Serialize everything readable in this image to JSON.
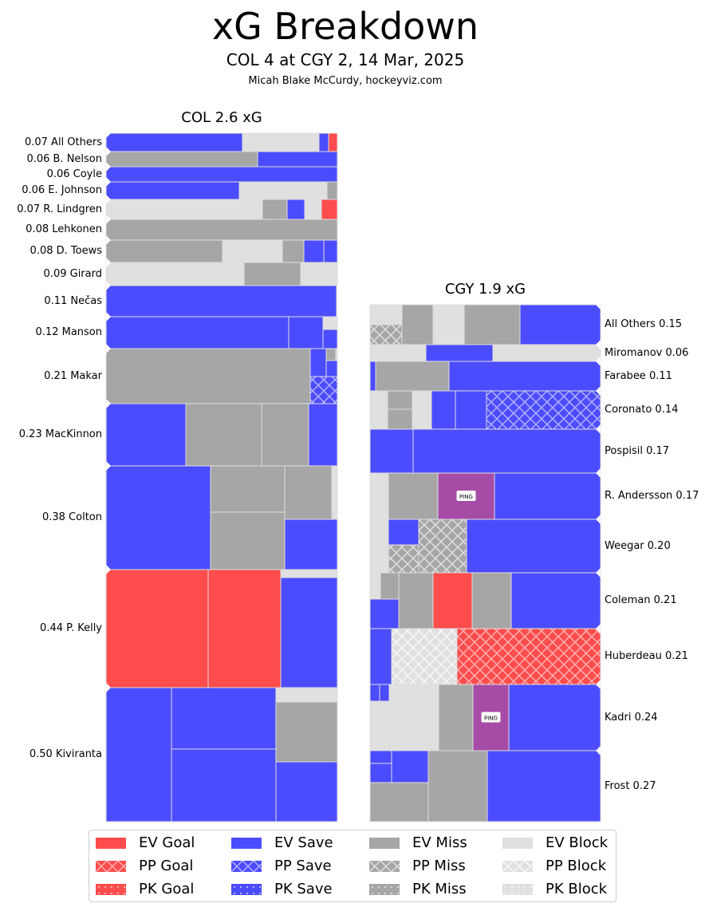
{
  "title": "xG Breakdown",
  "subtitle": "COL 4 at CGY 2, 14 Mar, 2025",
  "credit": "Micah Blake McCurdy, hockeyviz.com",
  "colors": {
    "goal": "#ff4c4c",
    "save": "#4c4cff",
    "miss": "#a6a6a6",
    "block": "#e0e0e0",
    "penalty": "#a64ca6",
    "border": "#dddddd"
  },
  "chart_data": {
    "type": "treemap",
    "title": "xG Breakdown",
    "teams": [
      {
        "name": "COL",
        "title": "COL 2.6 xG",
        "total_xg": 2.6,
        "players": [
          {
            "name": "All Others",
            "xg": 0.07,
            "label": "0.07 All Others",
            "shots": [
              "EV Save",
              "EV Block",
              "EV Block",
              "EV Save",
              "EV Goal"
            ]
          },
          {
            "name": "B. Nelson",
            "xg": 0.06,
            "label": "0.06 B. Nelson",
            "shots": [
              "EV Miss",
              "EV Save"
            ]
          },
          {
            "name": "Coyle",
            "xg": 0.06,
            "label": "0.06 Coyle",
            "shots": [
              "EV Save"
            ]
          },
          {
            "name": "E. Johnson",
            "xg": 0.06,
            "label": "0.06 E. Johnson",
            "shots": [
              "EV Save",
              "EV Block",
              "EV Miss"
            ]
          },
          {
            "name": "R. Lindgren",
            "xg": 0.07,
            "label": "0.07 R. Lindgren",
            "shots": [
              "EV Block",
              "EV Miss",
              "EV Save",
              "EV Block",
              "EV Goal"
            ]
          },
          {
            "name": "Lehkonen",
            "xg": 0.08,
            "label": "0.08 Lehkonen",
            "shots": [
              "EV Miss"
            ]
          },
          {
            "name": "D. Toews",
            "xg": 0.08,
            "label": "0.08 D. Toews",
            "shots": [
              "EV Miss",
              "EV Block",
              "EV Block",
              "EV Miss",
              "EV Save",
              "EV Save"
            ]
          },
          {
            "name": "Girard",
            "xg": 0.09,
            "label": "0.09 Girard",
            "shots": [
              "EV Block",
              "EV Miss",
              "EV Block"
            ]
          },
          {
            "name": "Nečas",
            "xg": 0.11,
            "label": "0.11 Nečas",
            "shots": [
              "EV Save"
            ]
          },
          {
            "name": "Manson",
            "xg": 0.12,
            "label": "0.12 Manson",
            "shots": [
              "EV Save",
              "EV Save",
              "EV Block",
              "EV Save"
            ]
          },
          {
            "name": "Makar",
            "xg": 0.21,
            "label": "0.21 Makar",
            "shots": [
              "EV Miss",
              "EV Save",
              "EV Miss",
              "EV Block",
              "EV Save",
              "PP Save"
            ]
          },
          {
            "name": "MacKinnon",
            "xg": 0.23,
            "label": "0.23 MacKinnon",
            "shots": [
              "EV Save",
              "EV Miss",
              "EV Miss",
              "EV Save"
            ]
          },
          {
            "name": "Colton",
            "xg": 0.38,
            "label": "0.38 Colton",
            "shots": [
              "EV Save",
              "EV Miss",
              "EV Miss",
              "EV Miss",
              "EV Block",
              "EV Save"
            ]
          },
          {
            "name": "P. Kelly",
            "xg": 0.44,
            "label": "0.44 P. Kelly",
            "shots": [
              "EV Goal",
              "EV Goal",
              "EV Block",
              "EV Save"
            ]
          },
          {
            "name": "Kiviranta",
            "xg": 0.5,
            "label": "0.50 Kiviranta",
            "shots": [
              "EV Save",
              "EV Save",
              "EV Save",
              "EV Block",
              "EV Miss",
              "EV Save"
            ]
          }
        ]
      },
      {
        "name": "CGY",
        "title": "CGY 1.9 xG",
        "total_xg": 1.9,
        "players": [
          {
            "name": "All Others",
            "xg": 0.15,
            "label": "All Others 0.15",
            "shots": [
              "EV Block",
              "EV Block",
              "PP Miss",
              "EV Miss",
              "EV Block",
              "EV Miss",
              "EV Save"
            ]
          },
          {
            "name": "Miromanov",
            "xg": 0.06,
            "label": "Miromanov 0.06",
            "shots": [
              "EV Block",
              "EV Save",
              "EV Block"
            ]
          },
          {
            "name": "Farabee",
            "xg": 0.11,
            "label": "Farabee 0.11",
            "shots": [
              "EV Save",
              "EV Miss",
              "EV Save"
            ]
          },
          {
            "name": "Coronato",
            "xg": 0.14,
            "label": "Coronato 0.14",
            "shots": [
              "EV Block",
              "EV Block",
              "EV Miss",
              "EV Miss",
              "EV Block",
              "EV Save",
              "EV Save",
              "PP Save"
            ]
          },
          {
            "name": "Pospisil",
            "xg": 0.17,
            "label": "Pospisil 0.17",
            "shots": [
              "EV Save",
              "EV Save"
            ]
          },
          {
            "name": "R. Andersson",
            "xg": 0.17,
            "label": "R. Andersson 0.17",
            "shots": [
              "EV Block",
              "EV Block",
              "EV Miss",
              "Penalty (PING)",
              "EV Save"
            ]
          },
          {
            "name": "Weegar",
            "xg": 0.2,
            "label": "Weegar 0.20",
            "shots": [
              "EV Block",
              "EV Block",
              "EV Save",
              "PP Miss",
              "PP Miss",
              "EV Save"
            ]
          },
          {
            "name": "Coleman",
            "xg": 0.21,
            "label": "Coleman 0.21",
            "shots": [
              "EV Block",
              "EV Miss",
              "EV Save",
              "EV Miss",
              "EV Goal",
              "EV Miss",
              "EV Save"
            ]
          },
          {
            "name": "Huberdeau",
            "xg": 0.21,
            "label": "Huberdeau 0.21",
            "shots": [
              "EV Save",
              "PP Block",
              "PP Goal"
            ]
          },
          {
            "name": "Kadri",
            "xg": 0.24,
            "label": "Kadri 0.24",
            "shots": [
              "EV Save",
              "EV Save",
              "EV Block",
              "EV Block",
              "EV Block",
              "EV Miss",
              "Penalty (PING)",
              "EV Save"
            ]
          },
          {
            "name": "Frost",
            "xg": 0.27,
            "label": "Frost 0.27",
            "shots": [
              "EV Save",
              "EV Save",
              "EV Save",
              "EV Miss",
              "EV Miss",
              "EV Save"
            ]
          }
        ]
      }
    ],
    "penalty_label": "PING",
    "legend": [
      {
        "label": "EV Goal",
        "kind": "goal",
        "pattern": "solid"
      },
      {
        "label": "PP Goal",
        "kind": "goal",
        "pattern": "cross"
      },
      {
        "label": "PK Goal",
        "kind": "goal",
        "pattern": "dots"
      },
      {
        "label": "EV Save",
        "kind": "save",
        "pattern": "solid"
      },
      {
        "label": "PP Save",
        "kind": "save",
        "pattern": "cross"
      },
      {
        "label": "PK Save",
        "kind": "save",
        "pattern": "dots"
      },
      {
        "label": "EV Miss",
        "kind": "miss",
        "pattern": "solid"
      },
      {
        "label": "PP Miss",
        "kind": "miss",
        "pattern": "cross"
      },
      {
        "label": "PK Miss",
        "kind": "miss",
        "pattern": "dots"
      },
      {
        "label": "EV Block",
        "kind": "block",
        "pattern": "solid"
      },
      {
        "label": "PP Block",
        "kind": "block",
        "pattern": "cross"
      },
      {
        "label": "PK Block",
        "kind": "block",
        "pattern": "dots"
      }
    ],
    "legend_position": "bottom"
  }
}
